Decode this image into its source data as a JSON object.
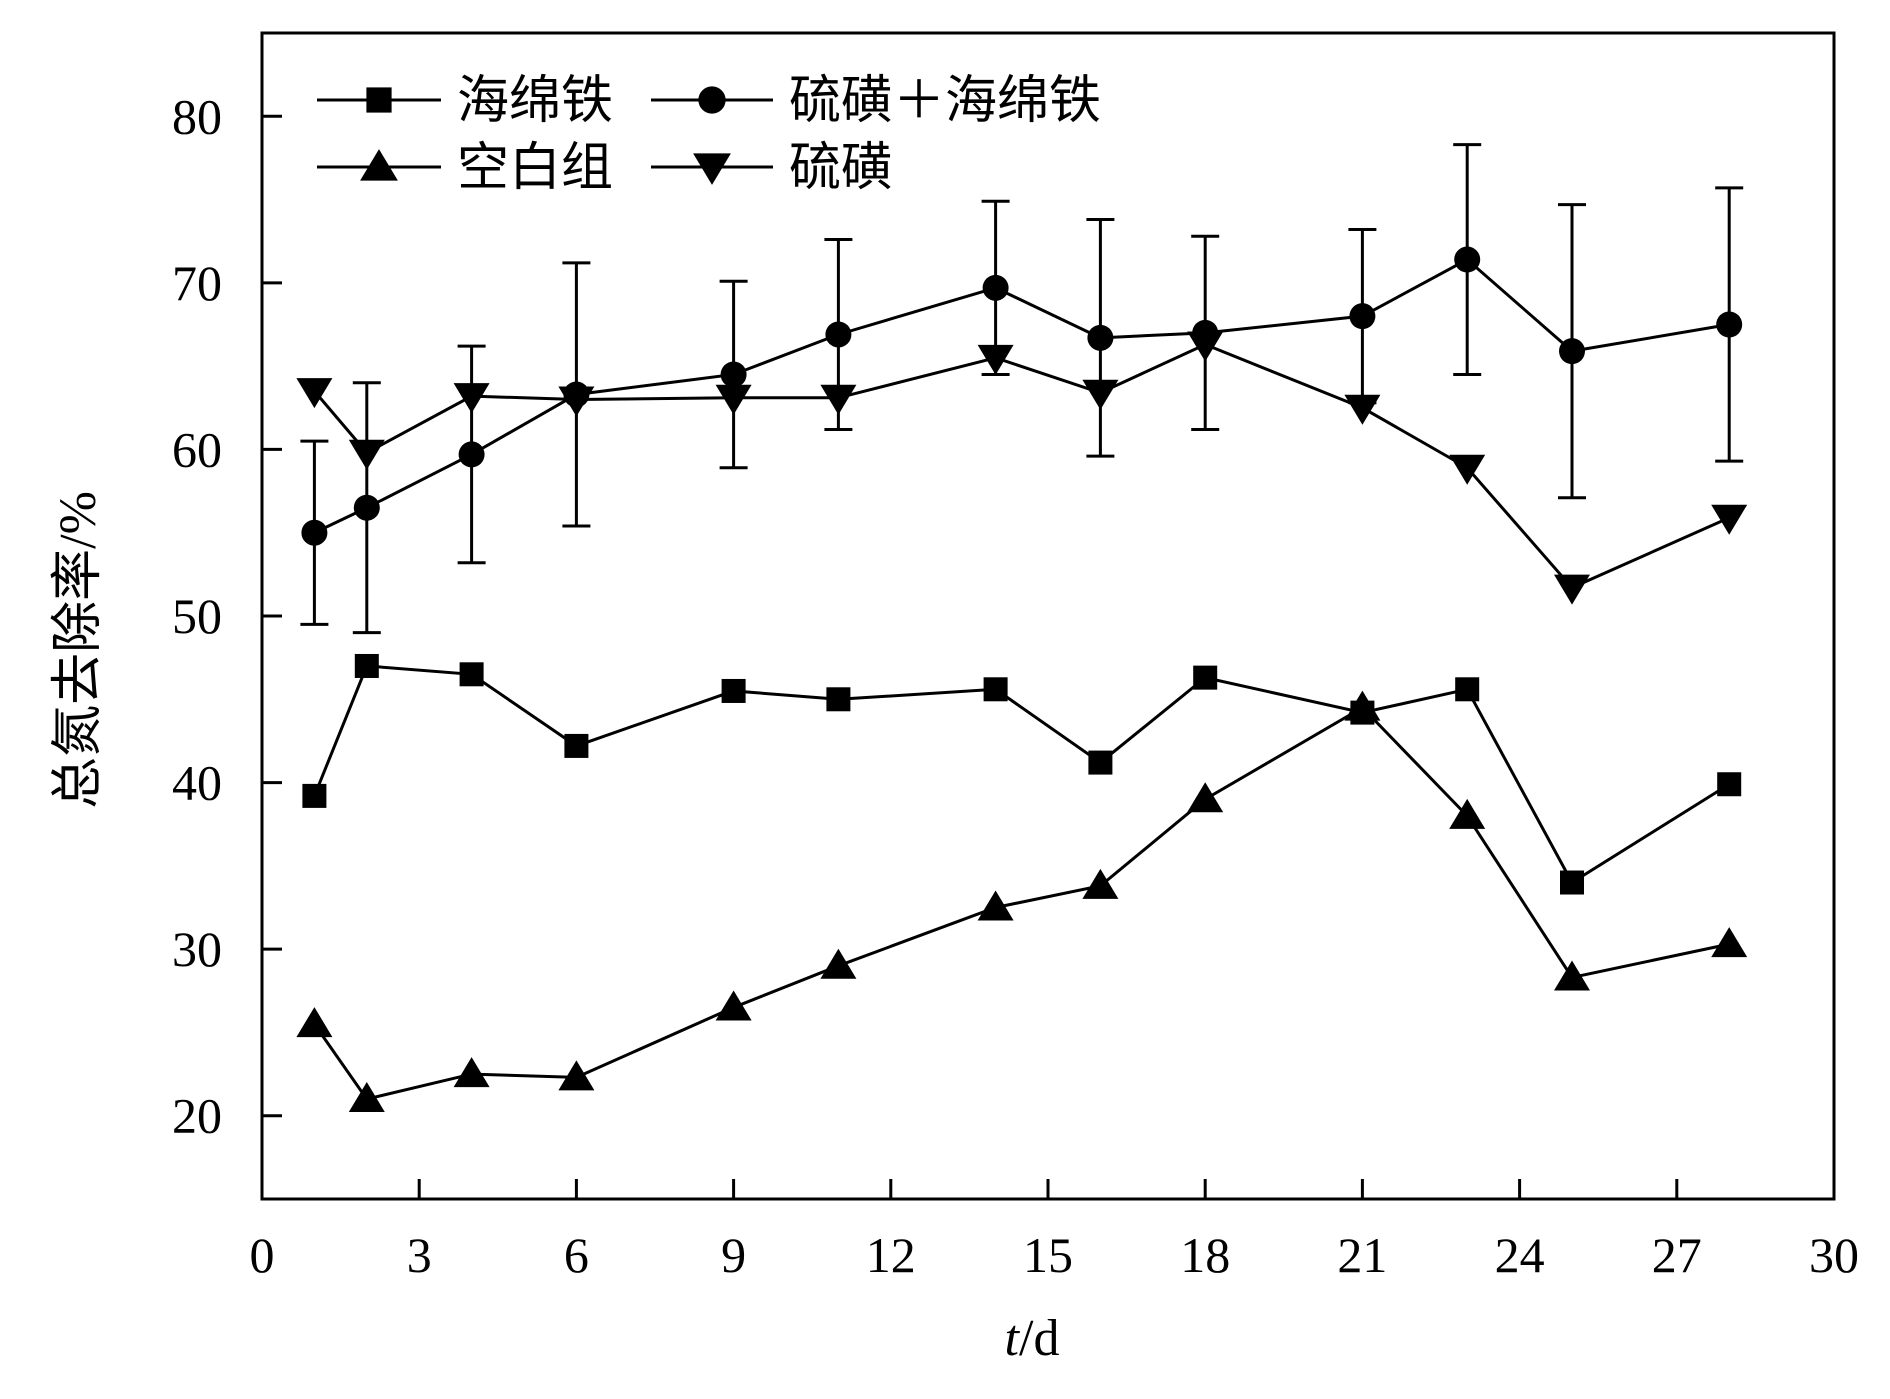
{
  "chart_data": {
    "type": "line",
    "xlabel_italic": "t",
    "xlabel_rest": "/d",
    "ylabel": "总氮去除率/%",
    "xlim": [
      0,
      30
    ],
    "ylim": [
      15,
      85
    ],
    "xticks": [
      0,
      3,
      6,
      9,
      12,
      15,
      18,
      21,
      24,
      27,
      30
    ],
    "yticks": [
      20,
      30,
      40,
      50,
      60,
      70,
      80
    ],
    "grid": false,
    "legend_position": "top-left",
    "series": [
      {
        "name": "海绵铁",
        "marker": "square",
        "x": [
          1,
          2,
          4,
          6,
          9,
          11,
          14,
          16,
          18,
          21,
          23,
          25,
          28
        ],
        "y": [
          39.2,
          47.0,
          46.5,
          42.2,
          45.5,
          45.0,
          45.6,
          41.2,
          46.3,
          44.2,
          45.6,
          34.0,
          39.9
        ]
      },
      {
        "name": "硫磺＋海绵铁",
        "marker": "circle",
        "x": [
          1,
          2,
          4,
          6,
          9,
          11,
          14,
          16,
          18,
          21,
          23,
          25,
          28
        ],
        "y": [
          55.0,
          56.5,
          59.7,
          63.3,
          64.5,
          66.9,
          69.7,
          66.7,
          67.0,
          68.0,
          71.4,
          65.9,
          67.5
        ],
        "error": [
          5.5,
          7.5,
          6.5,
          7.9,
          5.6,
          5.7,
          5.2,
          7.1,
          5.8,
          5.2,
          6.9,
          8.8,
          8.2
        ]
      },
      {
        "name": "空白组",
        "marker": "triangle-up",
        "x": [
          1,
          2,
          4,
          6,
          9,
          11,
          14,
          16,
          18,
          21,
          23,
          25,
          28
        ],
        "y": [
          25.5,
          21.0,
          22.5,
          22.3,
          26.5,
          29.0,
          32.5,
          33.8,
          39.0,
          44.5,
          38.0,
          28.3,
          30.3
        ]
      },
      {
        "name": "硫磺",
        "marker": "triangle-down",
        "x": [
          1,
          2,
          4,
          6,
          9,
          11,
          14,
          16,
          18,
          21,
          23,
          25,
          28
        ],
        "y": [
          63.5,
          59.8,
          63.2,
          63.0,
          63.1,
          63.1,
          65.5,
          63.4,
          66.3,
          62.5,
          58.9,
          51.7,
          55.9
        ]
      }
    ]
  }
}
